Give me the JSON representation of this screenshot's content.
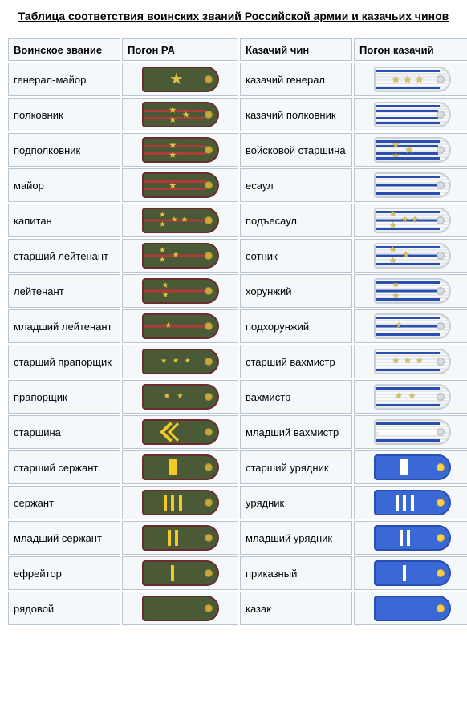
{
  "title": "Таблица соответствия воинских званий Российской армии и казачьих чинов",
  "headers": {
    "rank_ra": "Воинское звание",
    "epaulette_ra": "Погон РА",
    "rank_cossack": "Казачий чин",
    "epaulette_cossack": "Погон казачий"
  },
  "colors": {
    "ra_background": "#4a5a37",
    "ra_border": "#6a2c2c",
    "ra_stripe": "#b23a3a",
    "ra_star": "#e2c14a",
    "ra_chevron": "#f4c72a",
    "silver_bg_light": "#f6f8fa",
    "silver_bg_dark": "#e6e9ec",
    "silver_border": "#c8cfd6",
    "blue_stripe": "#2a4db0",
    "blue_bg": "#3a69d6",
    "cell_bg": "#f4f8fb",
    "cell_border": "#b9c5d1"
  },
  "rows": [
    {
      "rank_ra": "генерал-майор",
      "rank_cossack": "казачий генерал",
      "ra": {
        "type": "ra",
        "stripes": 0,
        "stars": [
          {
            "x": 45,
            "y": 50,
            "size": "big"
          }
        ]
      },
      "cs": {
        "type": "silver",
        "edge": true,
        "stripes": 0,
        "stars": [
          {
            "x": 28,
            "y": 50
          },
          {
            "x": 44,
            "y": 50
          },
          {
            "x": 60,
            "y": 50
          }
        ]
      }
    },
    {
      "rank_ra": "полковник",
      "rank_cossack": "казачий полковник",
      "ra": {
        "type": "ra",
        "stripes": 2,
        "stars": [
          {
            "x": 40,
            "y": 28
          },
          {
            "x": 40,
            "y": 72
          },
          {
            "x": 58,
            "y": 50
          }
        ]
      },
      "cs": {
        "type": "silver",
        "edge": true,
        "stripes": 2,
        "stars": []
      }
    },
    {
      "rank_ra": "подполковник",
      "rank_cossack": "войсковой старшина",
      "ra": {
        "type": "ra",
        "stripes": 2,
        "stars": [
          {
            "x": 40,
            "y": 28
          },
          {
            "x": 40,
            "y": 72
          }
        ]
      },
      "cs": {
        "type": "silver",
        "edge": true,
        "stripes": 2,
        "stars": [
          {
            "x": 28,
            "y": 26
          },
          {
            "x": 28,
            "y": 74
          },
          {
            "x": 46,
            "y": 50
          }
        ]
      }
    },
    {
      "rank_ra": "майор",
      "rank_cossack": "есаул",
      "ra": {
        "type": "ra",
        "stripes": 2,
        "stars": [
          {
            "x": 40,
            "y": 50
          }
        ]
      },
      "cs": {
        "type": "silver",
        "edge": true,
        "stripes": 1,
        "stars": []
      }
    },
    {
      "rank_ra": "капитан",
      "rank_cossack": "подъесаул",
      "ra": {
        "type": "ra",
        "stripes": 1,
        "stars": [
          {
            "x": 26,
            "y": 28,
            "size": "sm"
          },
          {
            "x": 26,
            "y": 72,
            "size": "sm"
          },
          {
            "x": 42,
            "y": 50,
            "size": "sm"
          },
          {
            "x": 56,
            "y": 50,
            "size": "sm"
          }
        ]
      },
      "cs": {
        "type": "silver",
        "edge": true,
        "stripes": 1,
        "stars": [
          {
            "x": 24,
            "y": 26,
            "size": "sm"
          },
          {
            "x": 24,
            "y": 74,
            "size": "sm"
          },
          {
            "x": 40,
            "y": 50,
            "size": "sm"
          },
          {
            "x": 54,
            "y": 50,
            "size": "sm"
          }
        ]
      }
    },
    {
      "rank_ra": "старший лейтенант",
      "rank_cossack": "сотник",
      "ra": {
        "type": "ra",
        "stripes": 1,
        "stars": [
          {
            "x": 26,
            "y": 28,
            "size": "sm"
          },
          {
            "x": 26,
            "y": 72,
            "size": "sm"
          },
          {
            "x": 44,
            "y": 50,
            "size": "sm"
          }
        ]
      },
      "cs": {
        "type": "silver",
        "edge": true,
        "stripes": 1,
        "stars": [
          {
            "x": 24,
            "y": 26,
            "size": "sm"
          },
          {
            "x": 24,
            "y": 74,
            "size": "sm"
          },
          {
            "x": 42,
            "y": 50,
            "size": "sm"
          }
        ]
      }
    },
    {
      "rank_ra": "лейтенант",
      "rank_cossack": "хорунжий",
      "ra": {
        "type": "ra",
        "stripes": 1,
        "stars": [
          {
            "x": 30,
            "y": 28,
            "size": "sm"
          },
          {
            "x": 30,
            "y": 72,
            "size": "sm"
          }
        ]
      },
      "cs": {
        "type": "silver",
        "edge": true,
        "stripes": 1,
        "stars": [
          {
            "x": 28,
            "y": 26,
            "size": "sm"
          },
          {
            "x": 28,
            "y": 74,
            "size": "sm"
          }
        ]
      }
    },
    {
      "rank_ra": "младший лейтенант",
      "rank_cossack": "подхорунжий",
      "ra": {
        "type": "ra",
        "stripes": 1,
        "stars": [
          {
            "x": 34,
            "y": 50,
            "size": "sm"
          }
        ]
      },
      "cs": {
        "type": "silver",
        "edge": true,
        "stripes": 1,
        "stars": [
          {
            "x": 32,
            "y": 50,
            "size": "sm"
          }
        ]
      }
    },
    {
      "rank_ra": "старший прапорщик",
      "rank_cossack": "старший вахмистр",
      "ra": {
        "type": "ra",
        "stripes": 0,
        "stars": [
          {
            "x": 28,
            "y": 50,
            "size": "sm"
          },
          {
            "x": 44,
            "y": 50,
            "size": "sm"
          },
          {
            "x": 60,
            "y": 50,
            "size": "sm"
          }
        ]
      },
      "cs": {
        "type": "silver",
        "edge": true,
        "stripes": 0,
        "stars": [
          {
            "x": 28,
            "y": 50,
            "size": "sm"
          },
          {
            "x": 44,
            "y": 50,
            "size": "sm"
          },
          {
            "x": 60,
            "y": 50,
            "size": "sm"
          }
        ]
      }
    },
    {
      "rank_ra": "прапорщик",
      "rank_cossack": "вахмистр",
      "ra": {
        "type": "ra",
        "stripes": 0,
        "stars": [
          {
            "x": 32,
            "y": 50,
            "size": "sm"
          },
          {
            "x": 50,
            "y": 50,
            "size": "sm"
          }
        ]
      },
      "cs": {
        "type": "silver",
        "edge": true,
        "stripes": 0,
        "stars": [
          {
            "x": 32,
            "y": 50,
            "size": "sm"
          },
          {
            "x": 50,
            "y": 50,
            "size": "sm"
          }
        ]
      }
    },
    {
      "rank_ra": "старшина",
      "rank_cossack": "младший вахмистр",
      "ra": {
        "type": "ra",
        "nco": {
          "kind": "starshina"
        }
      },
      "cs": {
        "type": "silver",
        "edge": true,
        "cs_nco": {
          "kind": "long"
        }
      }
    },
    {
      "rank_ra": "старший сержант",
      "rank_cossack": "старший урядник",
      "ra": {
        "type": "ra",
        "nco": {
          "kind": "wide"
        }
      },
      "cs": {
        "type": "blue",
        "cs_nco": {
          "kind": "wide"
        }
      }
    },
    {
      "rank_ra": "сержант",
      "rank_cossack": "урядник",
      "ra": {
        "type": "ra",
        "nco": {
          "kind": "bars",
          "n": 3
        }
      },
      "cs": {
        "type": "blue",
        "cs_nco": {
          "kind": "bars",
          "n": 3
        }
      }
    },
    {
      "rank_ra": "младший сержант",
      "rank_cossack": "младший урядник",
      "ra": {
        "type": "ra",
        "nco": {
          "kind": "bars",
          "n": 2
        }
      },
      "cs": {
        "type": "blue",
        "cs_nco": {
          "kind": "bars",
          "n": 2
        }
      }
    },
    {
      "rank_ra": "ефрейтор",
      "rank_cossack": "приказный",
      "ra": {
        "type": "ra",
        "nco": {
          "kind": "bars",
          "n": 1
        }
      },
      "cs": {
        "type": "blue",
        "cs_nco": {
          "kind": "bars",
          "n": 1
        }
      }
    },
    {
      "rank_ra": "рядовой",
      "rank_cossack": "казак",
      "ra": {
        "type": "ra"
      },
      "cs": {
        "type": "blue"
      }
    }
  ]
}
